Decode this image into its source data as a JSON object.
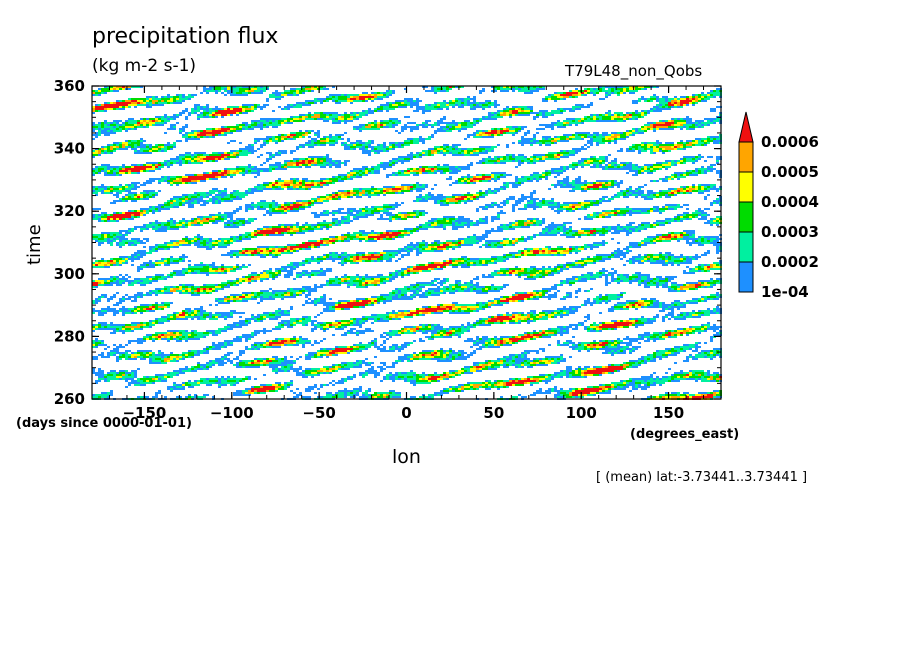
{
  "chart_data": {
    "type": "heatmap",
    "title": "precipitation flux",
    "units": "(kg m-2 s-1)",
    "run_id": "T79L48_non_Qobs",
    "xlabel": "lon",
    "ylabel": "time",
    "x_units": "(degrees_east)",
    "y_units": "(days since 0000-01-01)",
    "annotation": "[ (mean) lat:-3.73441..3.73441 ]",
    "xlim": [
      -180,
      180
    ],
    "ylim": [
      260,
      360
    ],
    "x_ticks": [
      -150,
      -100,
      -50,
      0,
      50,
      100,
      150
    ],
    "x_tick_labels": [
      "−150",
      "−100",
      "−50",
      "0",
      "50",
      "100",
      "150"
    ],
    "y_ticks": [
      260,
      280,
      300,
      320,
      340,
      360
    ],
    "y_tick_labels": [
      "260",
      "280",
      "300",
      "320",
      "340",
      "360"
    ],
    "colorbar": {
      "levels": [
        0.0001,
        0.0002,
        0.0003,
        0.0004,
        0.0005,
        0.0006
      ],
      "labels": [
        "1e-04",
        "0.0002",
        "0.0003",
        "0.0004",
        "0.0005",
        "0.0006"
      ],
      "colors": [
        "#1E90FF",
        "#00F0A0",
        "#00DC00",
        "#FFFF00",
        "#FFA500",
        "#F01010"
      ],
      "extend": "max"
    },
    "pattern": "eastward-propagating precipitation streaks"
  }
}
